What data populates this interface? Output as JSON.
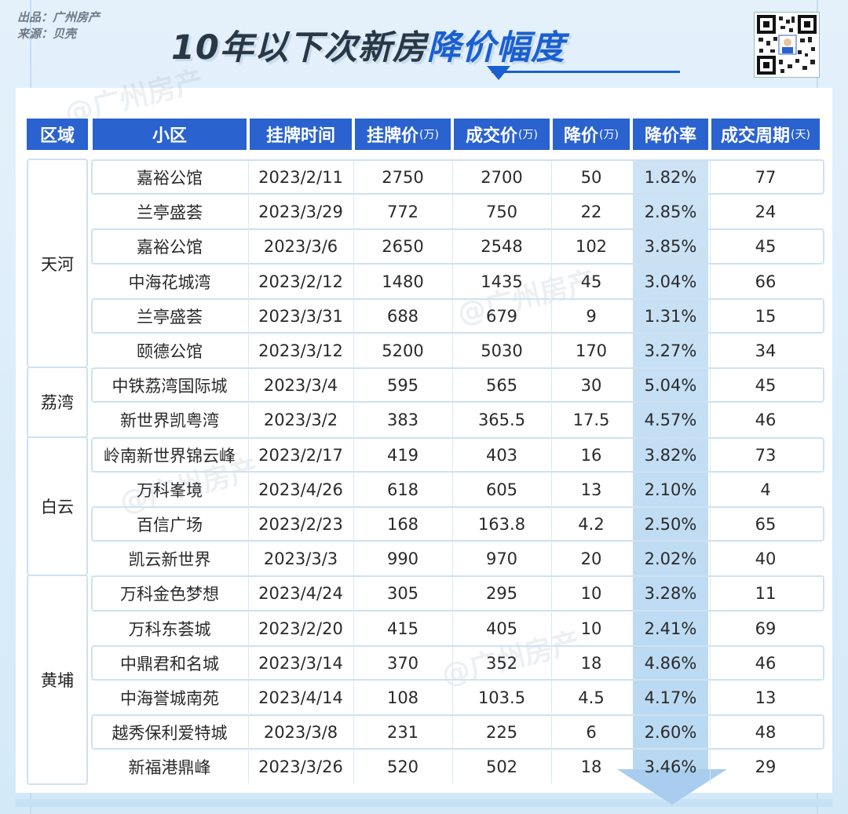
{
  "credits": {
    "publisher_label": "出品：",
    "publisher": "广州房产",
    "source_label": "来源：",
    "source": "贝壳"
  },
  "title": {
    "part1": "10年以下次新房",
    "part2": "降价幅度"
  },
  "watermark": "@广州房产",
  "headers": [
    {
      "text": "区域",
      "unit": ""
    },
    {
      "text": "小区",
      "unit": ""
    },
    {
      "text": "挂牌时间",
      "unit": ""
    },
    {
      "text": "挂牌价",
      "unit": "(万)"
    },
    {
      "text": "成交价",
      "unit": "(万)"
    },
    {
      "text": "降价",
      "unit": "(万)"
    },
    {
      "text": "降价率",
      "unit": ""
    },
    {
      "text": "成交周期",
      "unit": "(天)"
    }
  ],
  "districts": [
    {
      "name": "天河",
      "rows": 6
    },
    {
      "name": "荔湾",
      "rows": 2
    },
    {
      "name": "白云",
      "rows": 4
    },
    {
      "name": "黄埔",
      "rows": 6
    }
  ],
  "rows": [
    [
      "嘉裕公馆",
      "2023/2/11",
      "2750",
      "2700",
      "50",
      "1.82%",
      "77"
    ],
    [
      "兰亭盛荟",
      "2023/3/29",
      "772",
      "750",
      "22",
      "2.85%",
      "24"
    ],
    [
      "嘉裕公馆",
      "2023/3/6",
      "2650",
      "2548",
      "102",
      "3.85%",
      "45"
    ],
    [
      "中海花城湾",
      "2023/2/12",
      "1480",
      "1435",
      "45",
      "3.04%",
      "66"
    ],
    [
      "兰亭盛荟",
      "2023/3/31",
      "688",
      "679",
      "9",
      "1.31%",
      "15"
    ],
    [
      "颐德公馆",
      "2023/3/12",
      "5200",
      "5030",
      "170",
      "3.27%",
      "34"
    ],
    [
      "中铁荔湾国际城",
      "2023/3/4",
      "595",
      "565",
      "30",
      "5.04%",
      "45"
    ],
    [
      "新世界凯粤湾",
      "2023/3/2",
      "383",
      "365.5",
      "17.5",
      "4.57%",
      "46"
    ],
    [
      "岭南新世界锦云峰",
      "2023/2/17",
      "419",
      "403",
      "16",
      "3.82%",
      "73"
    ],
    [
      "万科峯境",
      "2023/4/26",
      "618",
      "605",
      "13",
      "2.10%",
      "4"
    ],
    [
      "百信广场",
      "2023/2/23",
      "168",
      "163.8",
      "4.2",
      "2.50%",
      "65"
    ],
    [
      "凯云新世界",
      "2023/3/3",
      "990",
      "970",
      "20",
      "2.02%",
      "40"
    ],
    [
      "万科金色梦想",
      "2023/4/24",
      "305",
      "295",
      "10",
      "3.28%",
      "11"
    ],
    [
      "万科东荟城",
      "2023/2/20",
      "415",
      "405",
      "10",
      "2.41%",
      "69"
    ],
    [
      "中鼎君和名城",
      "2023/3/14",
      "370",
      "352",
      "18",
      "4.86%",
      "46"
    ],
    [
      "中海誉城南苑",
      "2023/4/14",
      "108",
      "103.5",
      "4.5",
      "4.17%",
      "13"
    ],
    [
      "越秀保利爱特城",
      "2023/3/8",
      "231",
      "225",
      "6",
      "2.60%",
      "48"
    ],
    [
      "新福港鼎峰",
      "2023/3/26",
      "520",
      "502",
      "18",
      "3.46%",
      "29"
    ]
  ],
  "colors": {
    "header_bg": "#2a62cf",
    "title_highlight": "#1a5fd0",
    "rate_column_bg": "#c4def4"
  }
}
